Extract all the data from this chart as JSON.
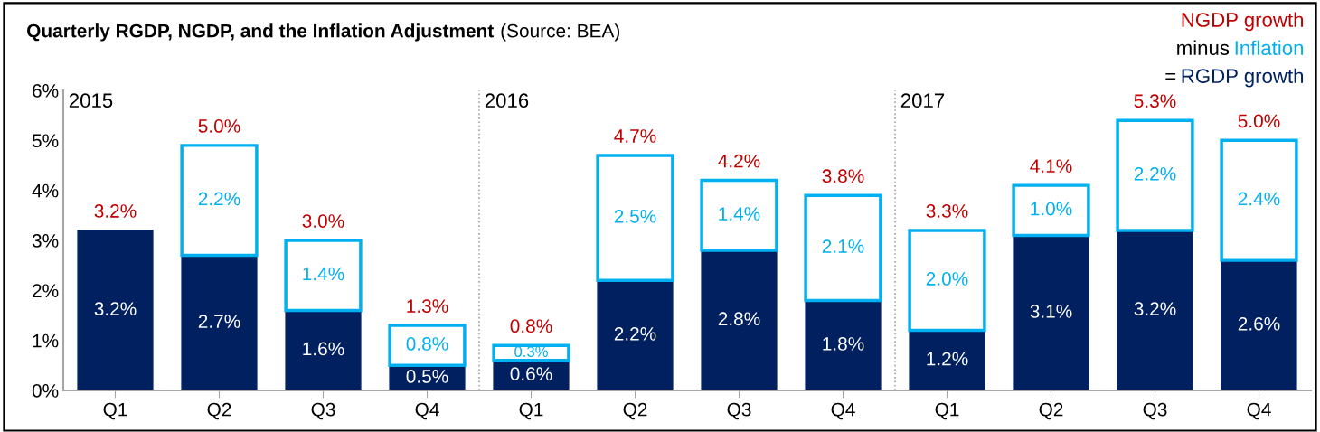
{
  "chart_data": {
    "type": "bar",
    "title": "Quarterly RGDP, NGDP, and the Inflation Adjustment",
    "categories": [
      "Q1",
      "Q2",
      "Q3",
      "Q4",
      "Q1",
      "Q2",
      "Q3",
      "Q4",
      "Q1",
      "Q2",
      "Q3",
      "Q4"
    ],
    "stacked": true,
    "series": [
      {
        "name": "RGDP growth",
        "color": "#002060",
        "values": [
          3.2,
          2.7,
          1.6,
          0.5,
          0.6,
          2.2,
          2.8,
          1.8,
          1.2,
          3.1,
          3.2,
          2.6
        ],
        "value_labels": [
          "3.2%",
          "2.7%",
          "1.6%",
          "0.5%",
          "0.6%",
          "2.2%",
          "2.8%",
          "1.8%",
          "1.2%",
          "3.1%",
          "3.2%",
          "2.6%"
        ]
      },
      {
        "name": "Inflation",
        "color": "#00b0f0",
        "values": [
          null,
          2.2,
          1.4,
          0.8,
          0.3,
          2.5,
          1.4,
          2.1,
          2.0,
          1.0,
          2.2,
          2.4
        ],
        "value_labels": [
          null,
          "2.2%",
          "1.4%",
          "0.8%",
          "0.3%",
          "2.5%",
          "1.4%",
          "2.1%",
          "2.0%",
          "1.0%",
          "2.2%",
          "2.4%"
        ]
      }
    ],
    "totals": [
      "3.2%",
      "5.0%",
      "3.0%",
      "1.3%",
      "0.8%",
      "4.7%",
      "4.2%",
      "3.8%",
      "3.3%",
      "4.1%",
      "5.3%",
      "5.0%"
    ],
    "ylim": [
      0,
      6
    ],
    "yticks": [
      {
        "value": 0,
        "label": "0%"
      },
      {
        "value": 1,
        "label": "1%"
      },
      {
        "value": 2,
        "label": "2%"
      },
      {
        "value": 3,
        "label": "3%"
      },
      {
        "value": 4,
        "label": "4%"
      },
      {
        "value": 5,
        "label": "5%"
      },
      {
        "value": 6,
        "label": "6%"
      }
    ],
    "annotations": [
      "(Source: BEA)",
      "NGDP growth",
      "minus",
      "=",
      "2015",
      "2016",
      "2017"
    ],
    "grid": false,
    "legend": false
  }
}
